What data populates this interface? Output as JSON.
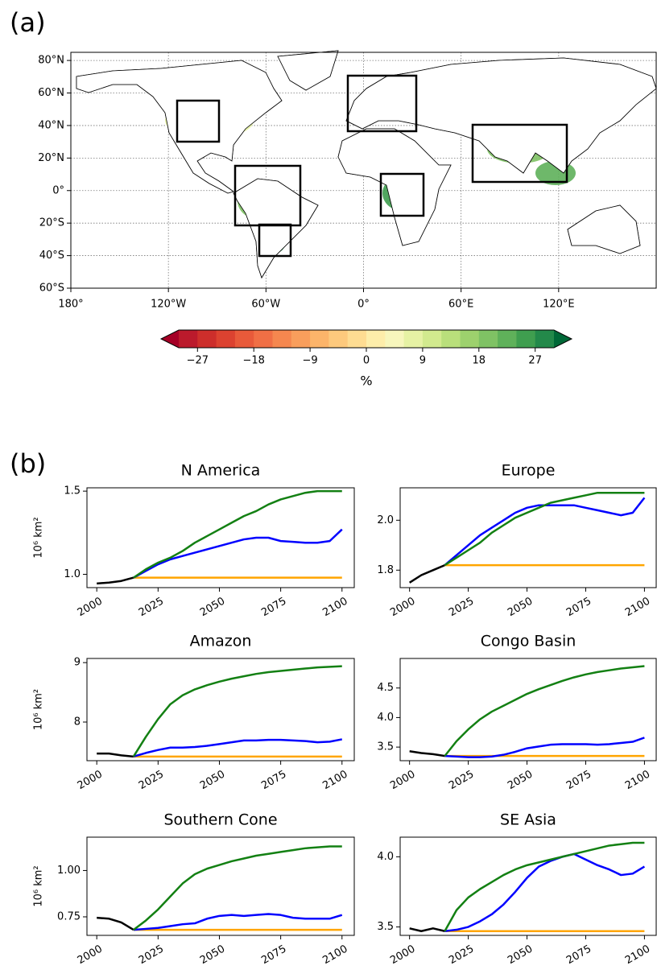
{
  "panel_labels": [
    "(a)",
    "(b)"
  ],
  "chart_data": [
    {
      "type": "map",
      "xlim": [
        -180,
        180
      ],
      "ylim": [
        -60,
        85
      ],
      "grid": true,
      "xticks": [
        {
          "value": -180,
          "label": "180°"
        },
        {
          "value": -120,
          "label": "120°W"
        },
        {
          "value": -60,
          "label": "60°W"
        },
        {
          "value": 0,
          "label": "0°"
        },
        {
          "value": 60,
          "label": "60°E"
        },
        {
          "value": 120,
          "label": "120°E"
        }
      ],
      "yticks": [
        {
          "value": 80,
          "label": "80°N"
        },
        {
          "value": 60,
          "label": "60°N"
        },
        {
          "value": 40,
          "label": "40°N"
        },
        {
          "value": 20,
          "label": "20°N"
        },
        {
          "value": 0,
          "label": "0°"
        },
        {
          "value": -20,
          "label": "20°S"
        },
        {
          "value": -40,
          "label": "40°S"
        },
        {
          "value": -60,
          "label": "60°S"
        }
      ]
    },
    {
      "type": "colorbar",
      "label": "%",
      "clim": [
        -30,
        30
      ],
      "colors": [
        "#bb1a2c",
        "#cd2e2b",
        "#dc4230",
        "#e85a3a",
        "#f06f45",
        "#f5874f",
        "#f99e5c",
        "#fcb46a",
        "#fdc97d",
        "#fedc92",
        "#fdedaa",
        "#f7f6bc",
        "#e6f2a4",
        "#d2ea8e",
        "#b9df7b",
        "#9dd16d",
        "#7fc264",
        "#5fb15a",
        "#3f9e4f",
        "#23894a"
      ],
      "extend_colors": [
        "#a50026",
        "#006837"
      ],
      "ticks": [
        {
          "value": -27,
          "label": "−27"
        },
        {
          "value": -18,
          "label": "−18"
        },
        {
          "value": -9,
          "label": "−9"
        },
        0,
        9,
        18,
        27
      ]
    },
    {
      "type": "line",
      "title": "N America",
      "ylabel": "10⁶ km²",
      "x": [
        2000,
        2005,
        2010,
        2015,
        2020,
        2025,
        2030,
        2035,
        2040,
        2045,
        2050,
        2055,
        2060,
        2065,
        2070,
        2075,
        2080,
        2085,
        2090,
        2095,
        2100
      ],
      "xlim": [
        1996,
        2105
      ],
      "xticks": [
        2000,
        2025,
        2050,
        2075,
        2100
      ],
      "ylim": [
        0.92,
        1.52
      ],
      "yticks": [
        {
          "value": 1,
          "label": "1.0"
        },
        1.5
      ],
      "series": [
        {
          "color": "#000000",
          "values": [
            0.945,
            0.95,
            0.96,
            0.98,
            null,
            null,
            null,
            null,
            null,
            null,
            null,
            null,
            null,
            null,
            null,
            null,
            null,
            null,
            null,
            null,
            null
          ]
        },
        {
          "color": "#ffa500",
          "values": [
            null,
            null,
            null,
            0.98,
            0.98,
            0.98,
            0.98,
            0.98,
            0.98,
            0.98,
            0.98,
            0.98,
            0.98,
            0.98,
            0.98,
            0.98,
            0.98,
            0.98,
            0.98,
            0.98,
            0.98
          ]
        },
        {
          "color": "#0000ff",
          "values": [
            null,
            null,
            null,
            0.98,
            1.02,
            1.06,
            1.09,
            1.11,
            1.13,
            1.15,
            1.17,
            1.19,
            1.21,
            1.22,
            1.22,
            1.2,
            1.195,
            1.19,
            1.19,
            1.2,
            1.27
          ]
        },
        {
          "color": "#138013",
          "values": [
            null,
            null,
            null,
            0.98,
            1.03,
            1.07,
            1.1,
            1.14,
            1.19,
            1.23,
            1.27,
            1.31,
            1.35,
            1.38,
            1.42,
            1.45,
            1.47,
            1.49,
            1.5,
            1.5,
            1.5
          ]
        }
      ]
    },
    {
      "type": "line",
      "title": "Europe",
      "x": [
        2000,
        2005,
        2010,
        2015,
        2020,
        2025,
        2030,
        2035,
        2040,
        2045,
        2050,
        2055,
        2060,
        2065,
        2070,
        2075,
        2080,
        2085,
        2090,
        2095,
        2100
      ],
      "xlim": [
        1996,
        2105
      ],
      "xticks": [
        2000,
        2025,
        2050,
        2075,
        2100
      ],
      "ylim": [
        1.73,
        2.13
      ],
      "yticks": [
        1.8,
        {
          "value": 2,
          "label": "2.0"
        }
      ],
      "series": [
        {
          "color": "#000000",
          "values": [
            1.75,
            1.78,
            1.8,
            1.82,
            null,
            null,
            null,
            null,
            null,
            null,
            null,
            null,
            null,
            null,
            null,
            null,
            null,
            null,
            null,
            null,
            null
          ]
        },
        {
          "color": "#ffa500",
          "values": [
            null,
            null,
            null,
            1.82,
            1.82,
            1.82,
            1.82,
            1.82,
            1.82,
            1.82,
            1.82,
            1.82,
            1.82,
            1.82,
            1.82,
            1.82,
            1.82,
            1.82,
            1.82,
            1.82,
            1.82
          ]
        },
        {
          "color": "#0000ff",
          "values": [
            null,
            null,
            null,
            1.82,
            1.86,
            1.9,
            1.94,
            1.97,
            2.0,
            2.03,
            2.05,
            2.06,
            2.06,
            2.06,
            2.06,
            2.05,
            2.04,
            2.03,
            2.02,
            2.03,
            2.09
          ]
        },
        {
          "color": "#138013",
          "values": [
            null,
            null,
            null,
            1.82,
            1.85,
            1.88,
            1.91,
            1.95,
            1.98,
            2.01,
            2.03,
            2.05,
            2.07,
            2.08,
            2.09,
            2.1,
            2.11,
            2.11,
            2.11,
            2.11,
            2.11
          ]
        }
      ]
    },
    {
      "type": "line",
      "title": "Amazon",
      "ylabel": "10⁶ km²",
      "x": [
        2000,
        2005,
        2010,
        2015,
        2020,
        2025,
        2030,
        2035,
        2040,
        2045,
        2050,
        2055,
        2060,
        2065,
        2070,
        2075,
        2080,
        2085,
        2090,
        2095,
        2100
      ],
      "xlim": [
        1996,
        2105
      ],
      "xticks": [
        2000,
        2025,
        2050,
        2075,
        2100
      ],
      "ylim": [
        7.35,
        9.07
      ],
      "yticks": [
        8,
        9
      ],
      "series": [
        {
          "color": "#000000",
          "values": [
            7.47,
            7.47,
            7.44,
            7.42,
            null,
            null,
            null,
            null,
            null,
            null,
            null,
            null,
            null,
            null,
            null,
            null,
            null,
            null,
            null,
            null,
            null
          ]
        },
        {
          "color": "#ffa500",
          "values": [
            null,
            null,
            null,
            7.42,
            7.42,
            7.42,
            7.42,
            7.42,
            7.42,
            7.42,
            7.42,
            7.42,
            7.42,
            7.42,
            7.42,
            7.42,
            7.42,
            7.42,
            7.42,
            7.42,
            7.42
          ]
        },
        {
          "color": "#0000ff",
          "values": [
            null,
            null,
            null,
            7.42,
            7.48,
            7.53,
            7.57,
            7.57,
            7.58,
            7.6,
            7.63,
            7.66,
            7.69,
            7.69,
            7.7,
            7.7,
            7.69,
            7.68,
            7.66,
            7.67,
            7.71
          ]
        },
        {
          "color": "#138013",
          "values": [
            null,
            null,
            null,
            7.42,
            7.75,
            8.05,
            8.3,
            8.45,
            8.55,
            8.62,
            8.68,
            8.73,
            8.77,
            8.81,
            8.84,
            8.86,
            8.88,
            8.9,
            8.92,
            8.93,
            8.94
          ]
        }
      ]
    },
    {
      "type": "line",
      "title": "Congo Basin",
      "x": [
        2000,
        2005,
        2010,
        2015,
        2020,
        2025,
        2030,
        2035,
        2040,
        2045,
        2050,
        2055,
        2060,
        2065,
        2070,
        2075,
        2080,
        2085,
        2090,
        2095,
        2100
      ],
      "xlim": [
        1996,
        2105
      ],
      "xticks": [
        2000,
        2025,
        2050,
        2075,
        2100
      ],
      "ylim": [
        3.27,
        5.0
      ],
      "yticks": [
        3.5,
        {
          "value": 4,
          "label": "4.0"
        },
        4.5
      ],
      "series": [
        {
          "color": "#000000",
          "values": [
            3.43,
            3.4,
            3.38,
            3.35,
            null,
            null,
            null,
            null,
            null,
            null,
            null,
            null,
            null,
            null,
            null,
            null,
            null,
            null,
            null,
            null,
            null
          ]
        },
        {
          "color": "#ffa500",
          "values": [
            null,
            null,
            null,
            3.35,
            3.35,
            3.35,
            3.35,
            3.35,
            3.35,
            3.35,
            3.35,
            3.35,
            3.35,
            3.35,
            3.35,
            3.35,
            3.35,
            3.35,
            3.35,
            3.35,
            3.35
          ]
        },
        {
          "color": "#0000ff",
          "values": [
            null,
            null,
            null,
            3.35,
            3.34,
            3.33,
            3.33,
            3.34,
            3.37,
            3.42,
            3.48,
            3.51,
            3.54,
            3.55,
            3.55,
            3.55,
            3.54,
            3.55,
            3.57,
            3.59,
            3.66
          ]
        },
        {
          "color": "#138013",
          "values": [
            null,
            null,
            null,
            3.35,
            3.6,
            3.8,
            3.97,
            4.1,
            4.2,
            4.3,
            4.4,
            4.48,
            4.55,
            4.62,
            4.68,
            4.73,
            4.77,
            4.8,
            4.83,
            4.85,
            4.87
          ]
        }
      ]
    },
    {
      "type": "line",
      "title": "Southern Cone",
      "ylabel": "10⁶ km²",
      "x": [
        2000,
        2005,
        2010,
        2015,
        2020,
        2025,
        2030,
        2035,
        2040,
        2045,
        2050,
        2055,
        2060,
        2065,
        2070,
        2075,
        2080,
        2085,
        2090,
        2095,
        2100
      ],
      "xlim": [
        1996,
        2105
      ],
      "xticks": [
        2000,
        2025,
        2050,
        2075,
        2100
      ],
      "ylim": [
        0.65,
        1.18
      ],
      "yticks": [
        0.75,
        {
          "value": 1,
          "label": "1.00"
        }
      ],
      "series": [
        {
          "color": "#000000",
          "values": [
            0.745,
            0.74,
            0.72,
            0.68,
            null,
            null,
            null,
            null,
            null,
            null,
            null,
            null,
            null,
            null,
            null,
            null,
            null,
            null,
            null,
            null,
            null
          ]
        },
        {
          "color": "#ffa500",
          "values": [
            null,
            null,
            null,
            0.68,
            0.68,
            0.68,
            0.68,
            0.68,
            0.68,
            0.68,
            0.68,
            0.68,
            0.68,
            0.68,
            0.68,
            0.68,
            0.68,
            0.68,
            0.68,
            0.68,
            0.68
          ]
        },
        {
          "color": "#0000ff",
          "values": [
            null,
            null,
            null,
            0.68,
            0.685,
            0.69,
            0.7,
            0.71,
            0.715,
            0.74,
            0.755,
            0.76,
            0.755,
            0.76,
            0.765,
            0.76,
            0.745,
            0.74,
            0.74,
            0.74,
            0.76
          ]
        },
        {
          "color": "#138013",
          "values": [
            null,
            null,
            null,
            0.68,
            0.73,
            0.79,
            0.86,
            0.93,
            0.98,
            1.01,
            1.03,
            1.05,
            1.065,
            1.08,
            1.09,
            1.1,
            1.11,
            1.12,
            1.125,
            1.13,
            1.13
          ]
        }
      ]
    },
    {
      "type": "line",
      "title": "SE Asia",
      "x": [
        2000,
        2005,
        2010,
        2015,
        2020,
        2025,
        2030,
        2035,
        2040,
        2045,
        2050,
        2055,
        2060,
        2065,
        2070,
        2075,
        2080,
        2085,
        2090,
        2095,
        2100
      ],
      "xlim": [
        1996,
        2105
      ],
      "xticks": [
        2000,
        2025,
        2050,
        2075,
        2100
      ],
      "ylim": [
        3.44,
        4.14
      ],
      "yticks": [
        3.5,
        {
          "value": 4,
          "label": "4.0"
        }
      ],
      "series": [
        {
          "color": "#000000",
          "values": [
            3.49,
            3.47,
            3.49,
            3.47,
            null,
            null,
            null,
            null,
            null,
            null,
            null,
            null,
            null,
            null,
            null,
            null,
            null,
            null,
            null,
            null,
            null
          ]
        },
        {
          "color": "#ffa500",
          "values": [
            null,
            null,
            null,
            3.47,
            3.47,
            3.47,
            3.47,
            3.47,
            3.47,
            3.47,
            3.47,
            3.47,
            3.47,
            3.47,
            3.47,
            3.47,
            3.47,
            3.47,
            3.47,
            3.47,
            3.47
          ]
        },
        {
          "color": "#0000ff",
          "values": [
            null,
            null,
            null,
            3.47,
            3.48,
            3.5,
            3.54,
            3.59,
            3.66,
            3.75,
            3.85,
            3.93,
            3.97,
            4.0,
            4.02,
            3.98,
            3.94,
            3.91,
            3.87,
            3.88,
            3.93
          ]
        },
        {
          "color": "#138013",
          "values": [
            null,
            null,
            null,
            3.47,
            3.62,
            3.71,
            3.77,
            3.82,
            3.87,
            3.91,
            3.94,
            3.96,
            3.98,
            4.0,
            4.02,
            4.04,
            4.06,
            4.08,
            4.09,
            4.1,
            4.1
          ]
        }
      ]
    }
  ]
}
